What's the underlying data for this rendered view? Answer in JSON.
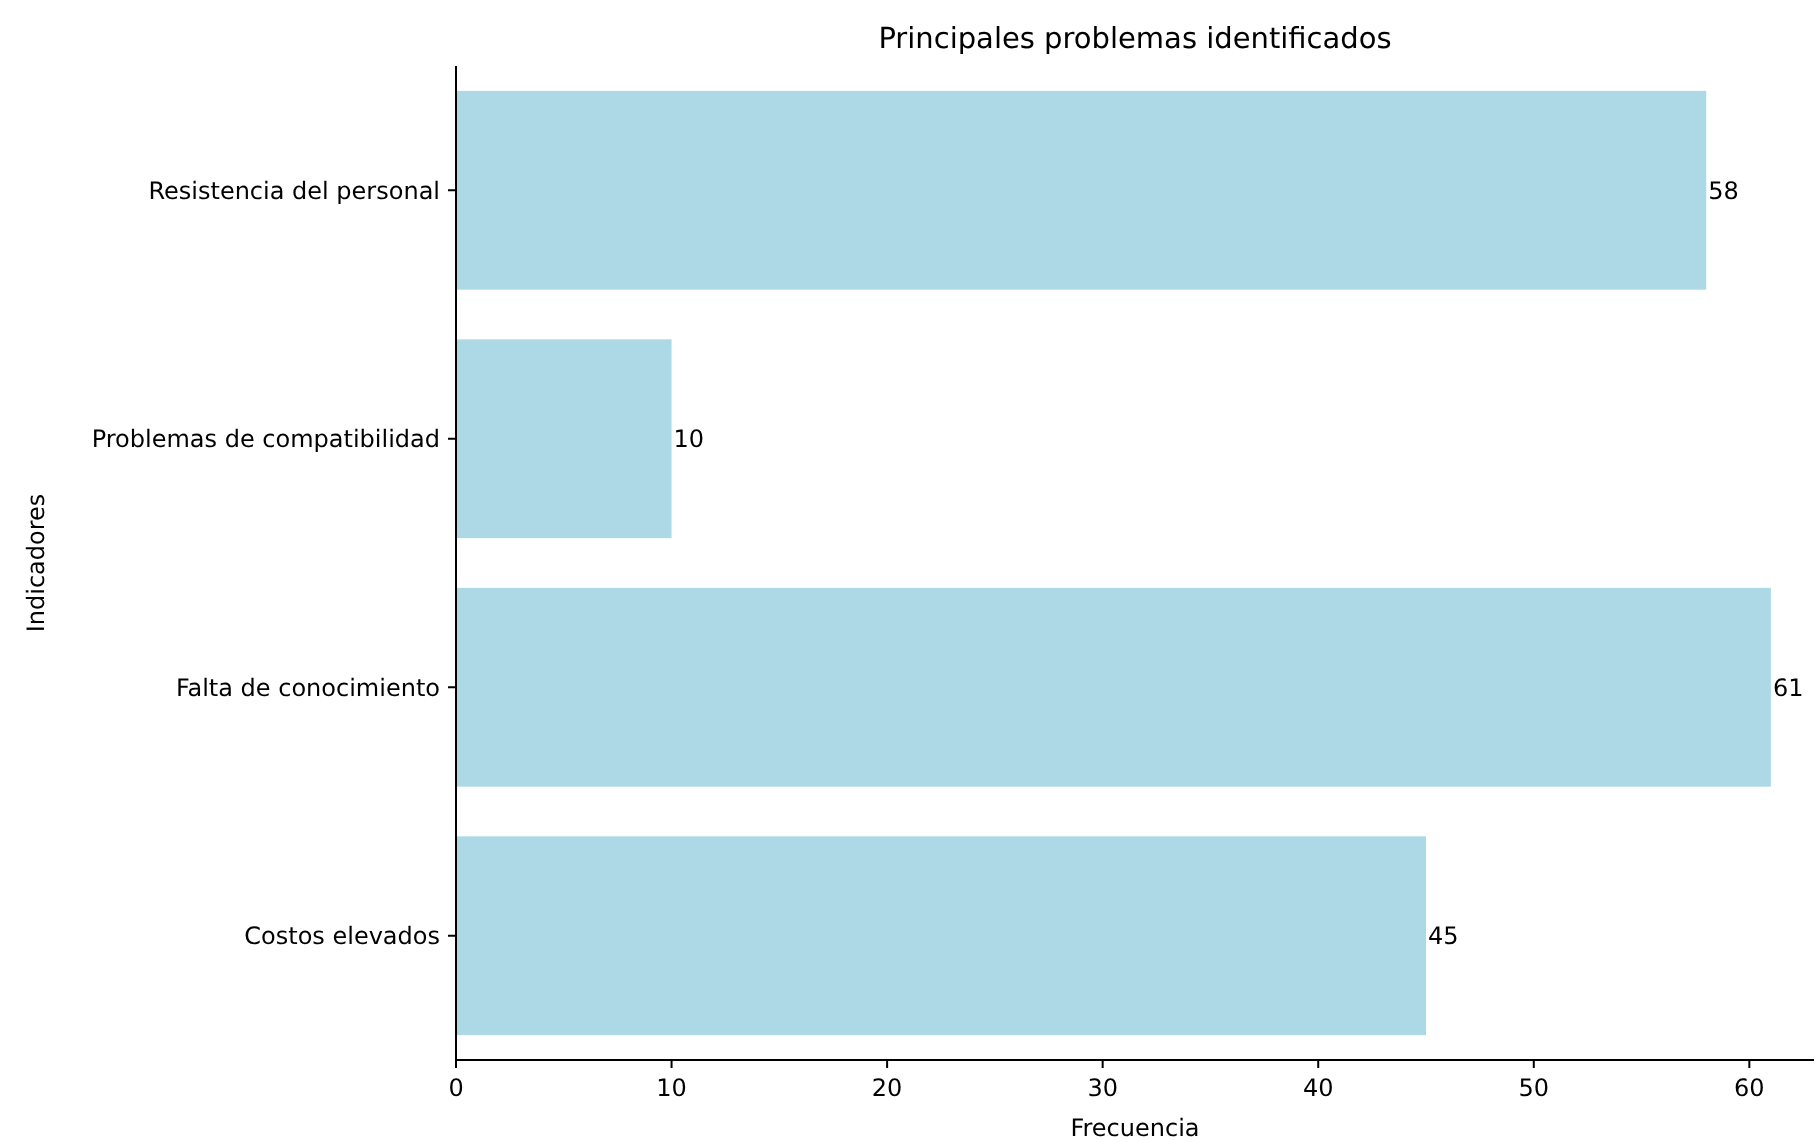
{
  "chart_data": {
    "type": "bar",
    "orientation": "horizontal",
    "title": "Principales problemas identificados",
    "xlabel": "Frecuencia",
    "ylabel": "Indicadores",
    "categories": [
      "Resistencia del personal",
      "Problemas de compatibilidad",
      "Falta de conocimiento",
      "Costos elevados"
    ],
    "values": [
      58,
      10,
      61,
      45
    ],
    "color": "#add8e6",
    "data_labels": true,
    "xlim": [
      0,
      63
    ],
    "xticks": [
      0,
      10,
      20,
      30,
      40,
      50,
      60
    ]
  }
}
